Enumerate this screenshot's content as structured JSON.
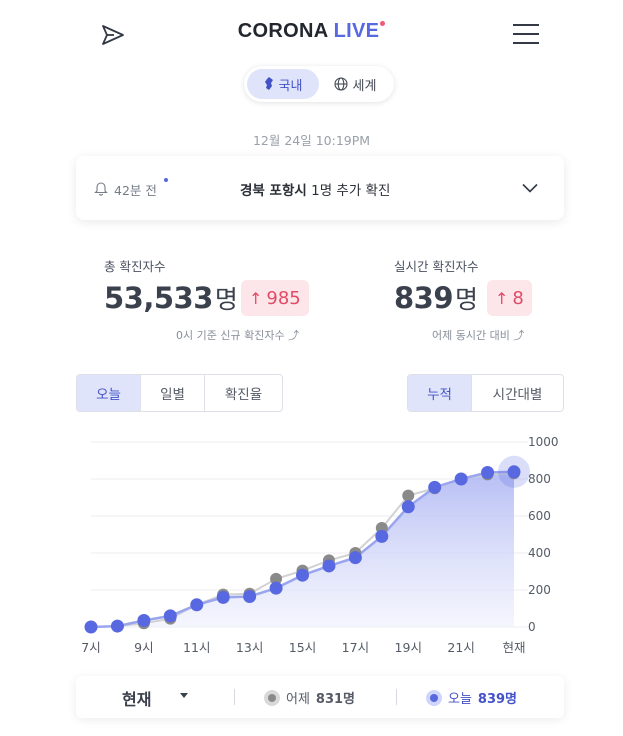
{
  "header": {
    "logo_part1": "CORONA",
    "logo_part2": "LIVE",
    "brand_color": "#5868e0",
    "left_icon": "send-icon",
    "right_icon": "menu-icon"
  },
  "region_toggle": {
    "domestic": "국내",
    "world": "세계",
    "active": "domestic"
  },
  "timestamp": "12월 24일 10:19PM",
  "notice": {
    "time_ago": "42분 전",
    "location": "경북 포항시",
    "message": "1명 추가 확진"
  },
  "stats": {
    "total": {
      "label": "총 확진자수",
      "value": "53,533",
      "unit": "명",
      "delta": "985",
      "note": "0시 기준 신규 확진자수"
    },
    "realtime": {
      "label": "실시간 확진자수",
      "value": "839",
      "unit": "명",
      "delta": "8",
      "note": "어제 동시간 대비"
    }
  },
  "tabs_left": [
    "오늘",
    "일별",
    "확진율"
  ],
  "tabs_left_active": 0,
  "tabs_right": [
    "누적",
    "시간대별"
  ],
  "tabs_right_active": 0,
  "chart_data": {
    "type": "area",
    "categories": [
      "7시",
      "8시",
      "9시",
      "10시",
      "11시",
      "12시",
      "13시",
      "14시",
      "15시",
      "16시",
      "17시",
      "18시",
      "19시",
      "20시",
      "21시",
      "22시",
      "현재"
    ],
    "x_tick_labels": [
      "7시",
      "9시",
      "11시",
      "13시",
      "15시",
      "17시",
      "19시",
      "21시",
      "현재"
    ],
    "y_ticks": [
      0,
      200,
      400,
      600,
      800,
      1000
    ],
    "ylim": [
      0,
      1000
    ],
    "grid": true,
    "series": [
      {
        "name": "어제",
        "color": "#8a8a8a",
        "values": [
          0,
          5,
          20,
          45,
          120,
          175,
          180,
          260,
          305,
          360,
          400,
          535,
          710,
          750,
          800,
          825,
          831
        ]
      },
      {
        "name": "오늘",
        "color": "#5868e0",
        "values": [
          0,
          5,
          35,
          60,
          120,
          160,
          165,
          210,
          280,
          330,
          375,
          490,
          650,
          755,
          800,
          835,
          839
        ]
      }
    ]
  },
  "legend": {
    "selector": "현재",
    "yesterday_label": "어제",
    "yesterday_value": "831명",
    "today_label": "오늘",
    "today_value": "839명"
  }
}
